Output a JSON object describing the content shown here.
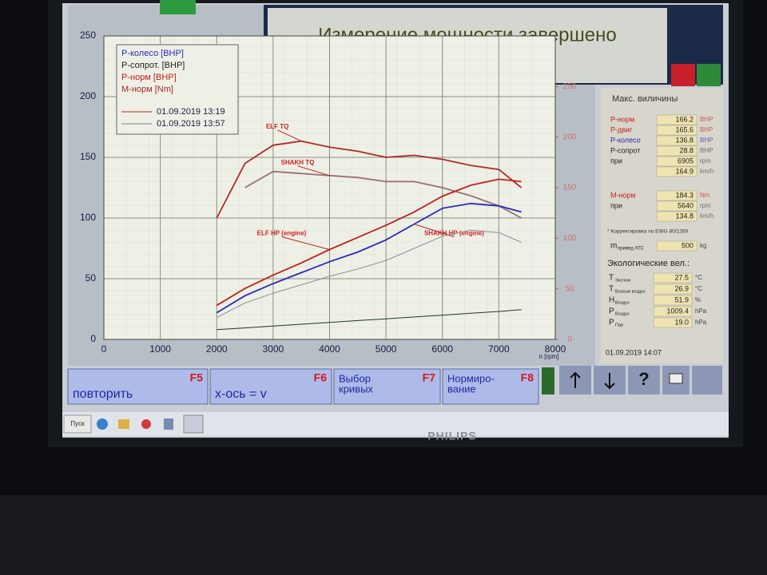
{
  "header": {
    "title": "Измерение мощности завершено"
  },
  "chart_data": {
    "type": "line",
    "x": [
      2000,
      2500,
      3000,
      3500,
      4000,
      4500,
      5000,
      5500,
      6000,
      6500,
      7000,
      7400
    ],
    "xlim": [
      0,
      8000
    ],
    "xticks": [
      0,
      1000,
      2000,
      3000,
      4000,
      5000,
      6000,
      7000,
      8000
    ],
    "xlabel": "n [rpm]",
    "ylim": [
      0,
      250
    ],
    "yticks": [
      0,
      50,
      100,
      150,
      200,
      250
    ],
    "y2lim": [
      0,
      300
    ],
    "y2ticks": [
      0,
      50,
      100,
      150,
      200,
      250
    ],
    "grid": true,
    "legend": {
      "corner": "top-left",
      "entries": [
        {
          "text": "P-колесо [BHP]",
          "color": "#2a2ab8"
        },
        {
          "text": "P-сопрот. [BHP]",
          "color": "#222222"
        },
        {
          "text": "P-норм [BHP]",
          "color": "#c02020"
        },
        {
          "text": "M-норм [Nm]",
          "color": "#a02828"
        }
      ],
      "runs": [
        {
          "text": "01.09.2019 13:19",
          "color": "#a02828"
        },
        {
          "text": "01.09.2019 13:57",
          "color": "#808080"
        }
      ]
    },
    "series": [
      {
        "name": "ELF TQ",
        "color": "#b02a2a",
        "axis": "y2",
        "values": [
          120,
          174,
          192,
          196,
          190,
          186,
          180,
          182,
          178,
          172,
          168,
          150
        ]
      },
      {
        "name": "SHAKH TQ",
        "color": "#9a7070",
        "axis": "y2",
        "values": [
          null,
          150,
          166,
          164,
          162,
          160,
          156,
          156,
          150,
          142,
          132,
          120
        ]
      },
      {
        "name": "ELF HP (engine)",
        "color": "#c02020",
        "values": [
          28,
          42,
          53,
          63,
          74,
          84,
          94,
          105,
          118,
          127,
          132,
          130
        ]
      },
      {
        "name": "SHAKH HP (engine)",
        "color": "#2a2ab8",
        "values": [
          22,
          36,
          46,
          55,
          64,
          72,
          82,
          95,
          108,
          112,
          110,
          105
        ]
      },
      {
        "color": "#8a8aa0",
        "values": [
          18,
          30,
          38,
          45,
          52,
          58,
          65,
          75,
          85,
          90,
          88,
          80
        ]
      },
      {
        "color": "#1e3a1e",
        "values": [
          8,
          9.5,
          11,
          12.5,
          14,
          15.5,
          17,
          18.5,
          20,
          21.5,
          23,
          24.5
        ]
      }
    ]
  },
  "panel": {
    "title": "Макс. виличины",
    "max_rows": [
      {
        "label": "P-норм",
        "value": "166.2",
        "unit": "BHP",
        "color": "#c02020"
      },
      {
        "label": "P-двиг",
        "value": "165.6",
        "unit": "BHP",
        "color": "#c02020"
      },
      {
        "label": "P-колесо",
        "value": "136.8",
        "unit": "BHP",
        "color": "#2a2ab8"
      },
      {
        "label": "P-сопрот",
        "value": "28.8",
        "unit": "BHP",
        "color": "#222222"
      },
      {
        "label": "при",
        "value": "6905",
        "unit": "rpm",
        "color": "#222222"
      },
      {
        "value": "164.9",
        "unit": "km/h",
        "color": "#222222"
      },
      {
        "label": "M-норм",
        "value": "184.3",
        "unit": "Nm",
        "color": "#c02020"
      },
      {
        "label": "при",
        "value": "5640",
        "unit": "rpm",
        "color": "#222222"
      },
      {
        "value": "134.8",
        "unit": "km/h",
        "color": "#222222"
      }
    ],
    "note": "* Корректировка по EWG 80/1269",
    "mass": {
      "label": "m",
      "sub": "привед ATC",
      "value": "500",
      "unit": "kg"
    },
    "eco_title": "Экологические вел.:",
    "eco_rows": [
      {
        "label": "T",
        "sub": "Экспом",
        "value": "27.5",
        "unit": "°C"
      },
      {
        "label": "T",
        "sub": "Всасыв воздух",
        "value": "26.9",
        "unit": "°C"
      },
      {
        "label": "H",
        "sub": "Воздух",
        "value": "51.9",
        "unit": "%"
      },
      {
        "label": "P",
        "sub": "Воздух",
        "value": "1009.4",
        "unit": "hPa"
      },
      {
        "label": "P",
        "sub": "Пар",
        "value": "19.0",
        "unit": "hPa"
      }
    ],
    "date": "01.09.2019  14:07"
  },
  "buttons": [
    {
      "key": "F5",
      "lines": [
        "повторить"
      ]
    },
    {
      "key": "F6",
      "lines": [
        "x-ось = v"
      ]
    },
    {
      "key": "F7",
      "lines": [
        "Выбор",
        "кривых"
      ]
    },
    {
      "key": "F8",
      "lines": [
        "Нормиро-",
        "вание"
      ]
    }
  ],
  "taskbar": {
    "start": "Пуск"
  },
  "monitor": {
    "brand": "PHILIPS"
  }
}
